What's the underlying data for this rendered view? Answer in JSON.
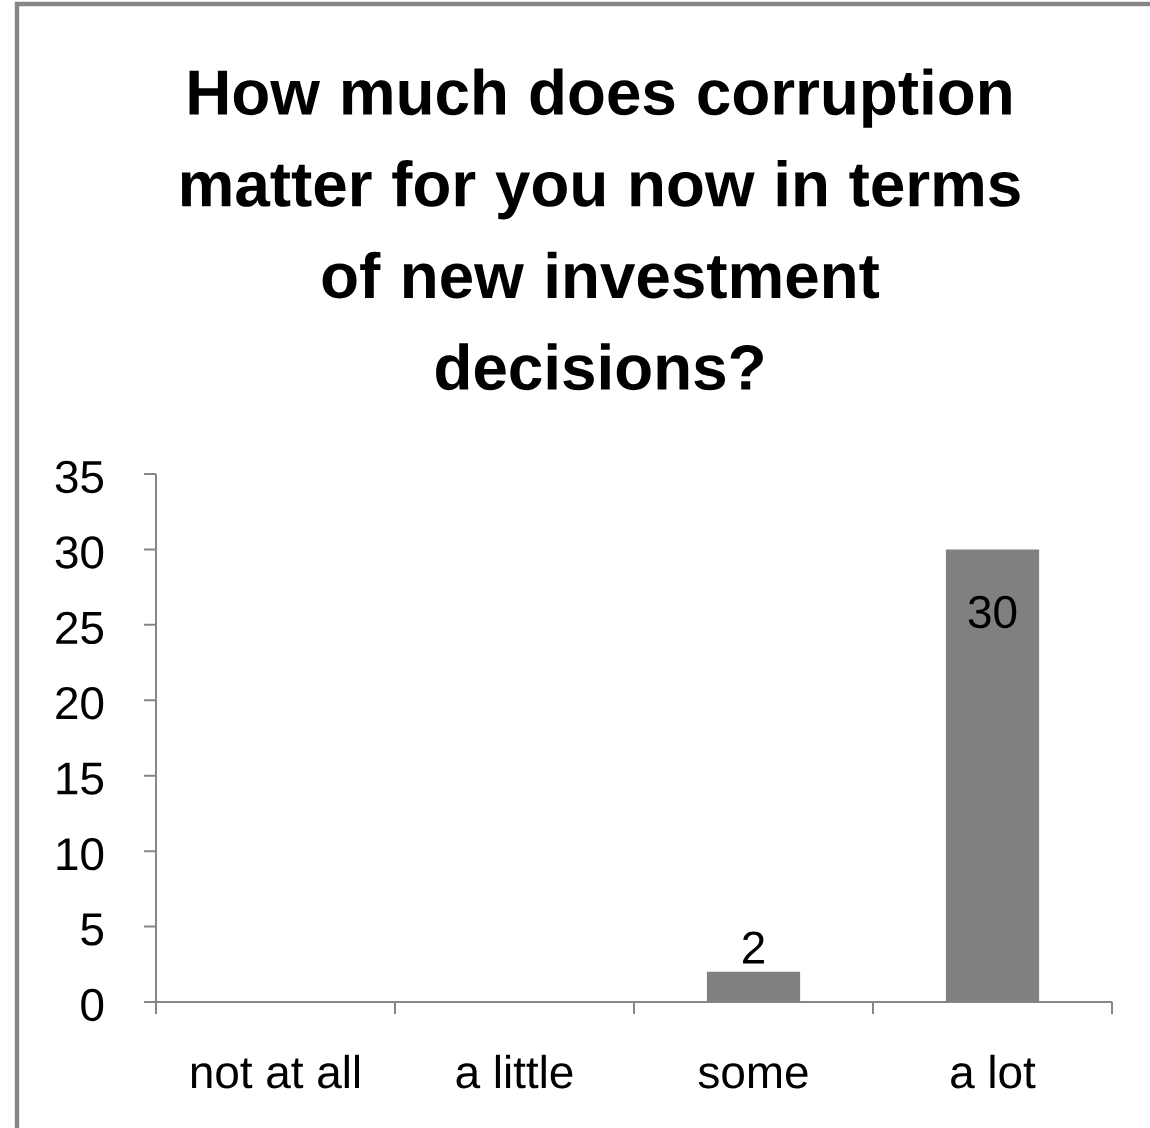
{
  "chart_data": {
    "type": "bar",
    "title": "How much does corruption matter for you now in terms of new investment decisions?",
    "categories": [
      "not at all",
      "a little",
      "some",
      "a lot"
    ],
    "values": [
      0,
      0,
      2,
      30
    ],
    "value_labels": [
      null,
      null,
      "2",
      "30"
    ],
    "color": "#808080",
    "ylim": [
      0,
      35
    ],
    "yticks": [
      0,
      5,
      10,
      15,
      20,
      25,
      30,
      35
    ]
  }
}
